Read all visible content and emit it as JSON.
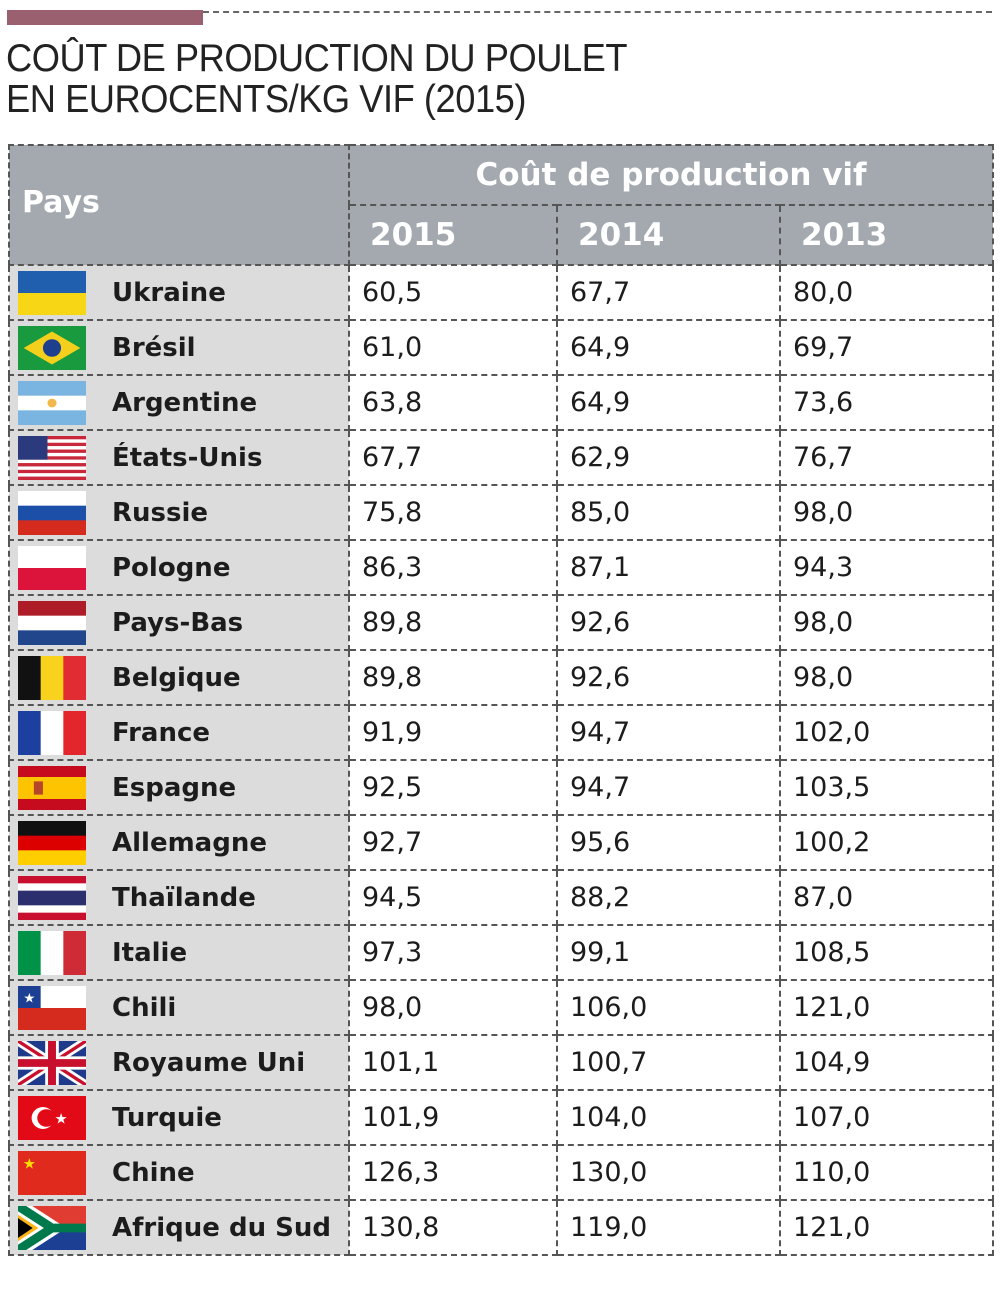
{
  "title_line1": "COÛT DE PRODUCTION DU POULET",
  "title_line2": "EN EUROCENTS/KG VIF (2015)",
  "table": {
    "col_country": "Pays",
    "group_header": "Coût de production vif",
    "years": [
      "2015",
      "2014",
      "2013"
    ],
    "rows": [
      {
        "country": "Ukraine",
        "flag": "ukraine",
        "values": [
          "60,5",
          "67,7",
          "80,0"
        ]
      },
      {
        "country": "Brésil",
        "flag": "brazil",
        "values": [
          "61,0",
          "64,9",
          "69,7"
        ]
      },
      {
        "country": "Argentine",
        "flag": "argentina",
        "values": [
          "63,8",
          "64,9",
          "73,6"
        ]
      },
      {
        "country": "États-Unis",
        "flag": "usa",
        "values": [
          "67,7",
          "62,9",
          "76,7"
        ]
      },
      {
        "country": "Russie",
        "flag": "russia",
        "values": [
          "75,8",
          "85,0",
          "98,0"
        ]
      },
      {
        "country": "Pologne",
        "flag": "poland",
        "values": [
          "86,3",
          "87,1",
          "94,3"
        ]
      },
      {
        "country": "Pays-Bas",
        "flag": "netherlands",
        "values": [
          "89,8",
          "92,6",
          "98,0"
        ]
      },
      {
        "country": "Belgique",
        "flag": "belgium",
        "values": [
          "89,8",
          "92,6",
          "98,0"
        ]
      },
      {
        "country": "France",
        "flag": "france",
        "values": [
          "91,9",
          "94,7",
          "102,0"
        ]
      },
      {
        "country": "Espagne",
        "flag": "spain",
        "values": [
          "92,5",
          "94,7",
          "103,5"
        ]
      },
      {
        "country": "Allemagne",
        "flag": "germany",
        "values": [
          "92,7",
          "95,6",
          "100,2"
        ]
      },
      {
        "country": "Thaïlande",
        "flag": "thailand",
        "values": [
          "94,5",
          "88,2",
          "87,0"
        ]
      },
      {
        "country": "Italie",
        "flag": "italy",
        "values": [
          "97,3",
          "99,1",
          "108,5"
        ]
      },
      {
        "country": "Chili",
        "flag": "chile",
        "values": [
          "98,0",
          "106,0",
          "121,0"
        ]
      },
      {
        "country": "Royaume Uni",
        "flag": "uk",
        "values": [
          "101,1",
          "100,7",
          "104,9"
        ]
      },
      {
        "country": "Turquie",
        "flag": "turkey",
        "values": [
          "101,9",
          "104,0",
          "107,0"
        ]
      },
      {
        "country": "Chine",
        "flag": "china",
        "values": [
          "126,3",
          "130,0",
          "110,0"
        ]
      },
      {
        "country": "Afrique du Sud",
        "flag": "south-africa",
        "values": [
          "130,8",
          "119,0",
          "121,0"
        ]
      }
    ]
  }
}
